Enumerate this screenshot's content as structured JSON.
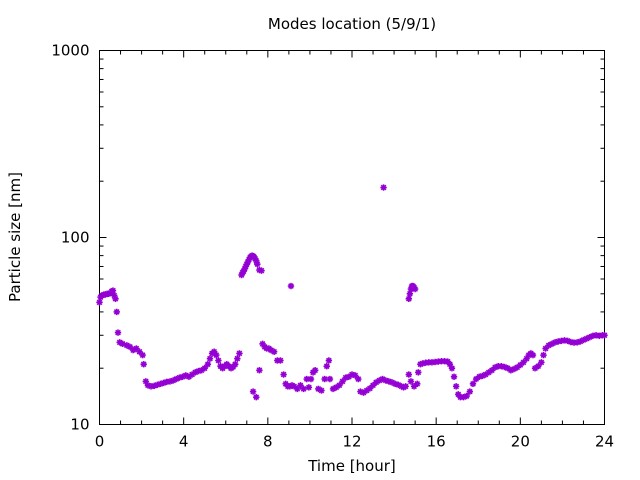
{
  "chart_data": {
    "type": "scatter",
    "title": "Modes location (5/9/1)",
    "xlabel": "Time [hour]",
    "ylabel": "Particle size [nm]",
    "xlim": [
      0,
      24
    ],
    "ylim": [
      10,
      1000
    ],
    "yscale": "log",
    "grid": false,
    "legend": "none",
    "marker_color": "#9400d3",
    "x_ticks": [
      0,
      4,
      8,
      12,
      16,
      20,
      24
    ],
    "x_tick_labels": [
      "0",
      "4",
      "8",
      "12",
      "16",
      "20",
      "24"
    ],
    "y_ticks": [
      10,
      100,
      1000
    ],
    "y_tick_labels": [
      "10",
      "100",
      "1000"
    ],
    "points": [
      [
        0.0,
        45.0
      ],
      [
        0.05,
        48.0
      ],
      [
        0.12,
        49.0
      ],
      [
        0.2,
        49.5
      ],
      [
        0.28,
        49.5
      ],
      [
        0.36,
        50.0
      ],
      [
        0.44,
        50.0
      ],
      [
        0.52,
        50.5
      ],
      [
        0.58,
        51.5
      ],
      [
        0.64,
        52.0
      ],
      [
        0.7,
        49.0
      ],
      [
        0.76,
        47.0
      ],
      [
        0.82,
        40.0
      ],
      [
        0.88,
        31.0
      ],
      [
        0.96,
        27.5
      ],
      [
        1.1,
        27.0
      ],
      [
        1.3,
        26.5
      ],
      [
        1.45,
        26.0
      ],
      [
        1.6,
        25.0
      ],
      [
        1.75,
        25.5
      ],
      [
        1.9,
        24.5
      ],
      [
        2.05,
        23.5
      ],
      [
        2.1,
        21.0
      ],
      [
        2.2,
        17.0
      ],
      [
        2.3,
        16.2
      ],
      [
        2.45,
        16.0
      ],
      [
        2.6,
        16.1
      ],
      [
        2.75,
        16.3
      ],
      [
        2.9,
        16.5
      ],
      [
        3.05,
        16.7
      ],
      [
        3.2,
        16.9
      ],
      [
        3.35,
        17.0
      ],
      [
        3.5,
        17.2
      ],
      [
        3.65,
        17.5
      ],
      [
        3.8,
        17.8
      ],
      [
        3.95,
        18.0
      ],
      [
        4.1,
        18.3
      ],
      [
        4.25,
        18.0
      ],
      [
        4.4,
        18.5
      ],
      [
        4.55,
        19.0
      ],
      [
        4.7,
        19.3
      ],
      [
        4.85,
        19.5
      ],
      [
        5.0,
        20.0
      ],
      [
        5.15,
        21.0
      ],
      [
        5.25,
        22.5
      ],
      [
        5.35,
        24.0
      ],
      [
        5.45,
        24.5
      ],
      [
        5.55,
        23.5
      ],
      [
        5.65,
        22.0
      ],
      [
        5.75,
        20.5
      ],
      [
        5.85,
        20.0
      ],
      [
        5.95,
        20.5
      ],
      [
        6.05,
        21.0
      ],
      [
        6.15,
        20.5
      ],
      [
        6.25,
        20.0
      ],
      [
        6.35,
        20.3
      ],
      [
        6.45,
        21.0
      ],
      [
        6.55,
        22.5
      ],
      [
        6.65,
        24.0
      ],
      [
        6.75,
        63.0
      ],
      [
        6.8,
        65.0
      ],
      [
        6.85,
        66.0
      ],
      [
        6.9,
        68.0
      ],
      [
        6.95,
        70.0
      ],
      [
        7.0,
        72.0
      ],
      [
        7.05,
        74.0
      ],
      [
        7.1,
        76.0
      ],
      [
        7.15,
        78.0
      ],
      [
        7.2,
        79.0
      ],
      [
        7.25,
        80.0
      ],
      [
        7.3,
        79.5
      ],
      [
        7.35,
        78.5
      ],
      [
        7.4,
        77.0
      ],
      [
        7.45,
        75.0
      ],
      [
        7.5,
        72.0
      ],
      [
        7.6,
        67.0
      ],
      [
        7.7,
        66.5
      ],
      [
        7.3,
        15.0
      ],
      [
        7.45,
        14.0
      ],
      [
        7.6,
        19.5
      ],
      [
        7.75,
        27.0
      ],
      [
        7.85,
        26.0
      ],
      [
        7.95,
        25.5
      ],
      [
        8.05,
        25.5
      ],
      [
        8.15,
        25.0
      ],
      [
        8.3,
        24.5
      ],
      [
        8.45,
        22.0
      ],
      [
        8.6,
        22.0
      ],
      [
        8.75,
        18.5
      ],
      [
        8.85,
        16.5
      ],
      [
        8.95,
        16.0
      ],
      [
        9.05,
        16.0
      ],
      [
        9.15,
        16.2
      ],
      [
        9.25,
        16.0
      ],
      [
        9.4,
        15.5
      ],
      [
        9.55,
        16.2
      ],
      [
        9.7,
        15.5
      ],
      [
        9.85,
        17.5
      ],
      [
        9.95,
        15.8
      ],
      [
        10.05,
        17.5
      ],
      [
        10.15,
        19.0
      ],
      [
        10.25,
        19.5
      ],
      [
        10.4,
        15.5
      ],
      [
        10.55,
        15.2
      ],
      [
        10.7,
        17.5
      ],
      [
        10.8,
        20.5
      ],
      [
        10.9,
        22.0
      ],
      [
        10.95,
        17.5
      ],
      [
        11.1,
        15.5
      ],
      [
        11.25,
        15.8
      ],
      [
        11.4,
        16.2
      ],
      [
        11.55,
        17.0
      ],
      [
        11.7,
        17.8
      ],
      [
        11.85,
        18.0
      ],
      [
        12.0,
        18.5
      ],
      [
        12.15,
        18.3
      ],
      [
        12.3,
        17.5
      ],
      [
        12.4,
        15.0
      ],
      [
        12.55,
        14.8
      ],
      [
        12.7,
        15.2
      ],
      [
        12.85,
        15.6
      ],
      [
        13.0,
        16.2
      ],
      [
        13.15,
        16.8
      ],
      [
        13.3,
        17.2
      ],
      [
        13.45,
        17.5
      ],
      [
        13.6,
        17.2
      ],
      [
        13.75,
        17.0
      ],
      [
        13.9,
        16.8
      ],
      [
        14.05,
        16.5
      ],
      [
        14.2,
        16.3
      ],
      [
        14.35,
        16.0
      ],
      [
        14.45,
        15.8
      ],
      [
        14.55,
        16.0
      ],
      [
        9.1,
        55.0
      ],
      [
        13.5,
        185.0
      ],
      [
        14.7,
        47.0
      ],
      [
        14.75,
        50.0
      ],
      [
        14.8,
        53.0
      ],
      [
        14.85,
        55.0
      ],
      [
        14.9,
        55.0
      ],
      [
        14.95,
        54.0
      ],
      [
        15.0,
        53.0
      ],
      [
        14.7,
        18.5
      ],
      [
        14.8,
        17.0
      ],
      [
        14.95,
        16.0
      ],
      [
        15.1,
        16.5
      ],
      [
        15.15,
        19.0
      ],
      [
        15.25,
        21.0
      ],
      [
        15.35,
        21.2
      ],
      [
        15.5,
        21.4
      ],
      [
        15.65,
        21.5
      ],
      [
        15.8,
        21.5
      ],
      [
        15.95,
        21.6
      ],
      [
        16.1,
        21.7
      ],
      [
        16.25,
        21.8
      ],
      [
        16.4,
        21.8
      ],
      [
        16.55,
        21.7
      ],
      [
        16.65,
        21.0
      ],
      [
        16.75,
        20.0
      ],
      [
        16.85,
        18.0
      ],
      [
        16.95,
        16.0
      ],
      [
        17.05,
        14.5
      ],
      [
        17.15,
        14.0
      ],
      [
        17.3,
        14.0
      ],
      [
        17.45,
        14.2
      ],
      [
        17.6,
        15.0
      ],
      [
        17.75,
        16.5
      ],
      [
        17.9,
        17.5
      ],
      [
        18.05,
        18.0
      ],
      [
        18.2,
        18.2
      ],
      [
        18.35,
        18.5
      ],
      [
        18.5,
        19.0
      ],
      [
        18.65,
        19.5
      ],
      [
        18.8,
        20.2
      ],
      [
        18.95,
        20.5
      ],
      [
        19.1,
        20.5
      ],
      [
        19.25,
        20.3
      ],
      [
        19.4,
        20.0
      ],
      [
        19.55,
        19.5
      ],
      [
        19.7,
        19.8
      ],
      [
        19.85,
        20.2
      ],
      [
        20.0,
        20.8
      ],
      [
        20.15,
        21.5
      ],
      [
        20.3,
        22.5
      ],
      [
        20.4,
        23.5
      ],
      [
        20.5,
        24.0
      ],
      [
        20.6,
        23.5
      ],
      [
        20.7,
        20.0
      ],
      [
        20.85,
        20.5
      ],
      [
        21.0,
        21.5
      ],
      [
        21.1,
        23.5
      ],
      [
        21.2,
        25.5
      ],
      [
        21.35,
        26.5
      ],
      [
        21.5,
        27.0
      ],
      [
        21.65,
        27.5
      ],
      [
        21.8,
        27.8
      ],
      [
        21.95,
        28.0
      ],
      [
        22.1,
        28.2
      ],
      [
        22.25,
        28.0
      ],
      [
        22.4,
        27.6
      ],
      [
        22.55,
        27.4
      ],
      [
        22.7,
        27.5
      ],
      [
        22.85,
        27.8
      ],
      [
        23.0,
        28.3
      ],
      [
        23.15,
        28.8
      ],
      [
        23.3,
        29.3
      ],
      [
        23.45,
        29.8
      ],
      [
        23.6,
        30.0
      ],
      [
        23.75,
        29.8
      ],
      [
        23.9,
        30.0
      ],
      [
        24.0,
        30.0
      ]
    ]
  }
}
